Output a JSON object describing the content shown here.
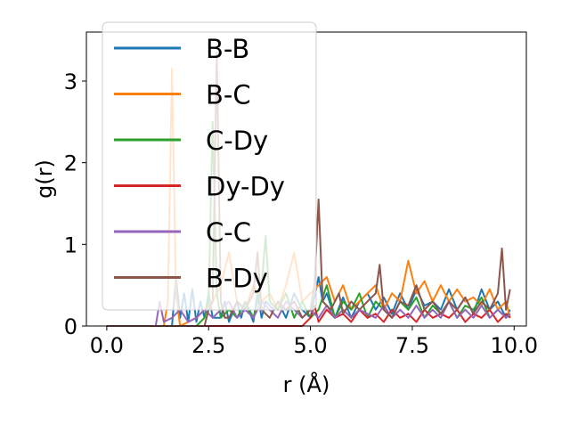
{
  "chart_data": {
    "type": "line",
    "xlabel": "r (Å)",
    "ylabel": "g(r)",
    "xlim": [
      -0.5,
      10.3
    ],
    "ylim": [
      0,
      3.6
    ],
    "xticks": [
      0.0,
      2.5,
      5.0,
      7.5,
      10.0
    ],
    "xtick_labels": [
      "0.0",
      "2.5",
      "5.0",
      "7.5",
      "10.0"
    ],
    "yticks": [
      0,
      1,
      2,
      3
    ],
    "ytick_labels": [
      "0",
      "1",
      "2",
      "3"
    ],
    "grid": false,
    "legend_position": "upper-left",
    "series": [
      {
        "name": "B-B",
        "color": "#1f77b4",
        "x": [
          0,
          1.6,
          1.7,
          1.8,
          1.9,
          2.0,
          2.1,
          2.2,
          2.3,
          2.4,
          2.5,
          2.6,
          2.8,
          2.9,
          3.0,
          3.2,
          3.3,
          3.4,
          3.6,
          3.7,
          3.8,
          3.9,
          4.1,
          4.2,
          4.4,
          4.6,
          4.8,
          5.0,
          5.2,
          5.3,
          5.4,
          5.6,
          5.8,
          6.0,
          6.2,
          6.4,
          6.6,
          6.8,
          7.0,
          7.2,
          7.4,
          7.6,
          7.8,
          8.0,
          8.2,
          8.4,
          8.6,
          8.8,
          9.0,
          9.2,
          9.4,
          9.6,
          9.8,
          9.9
        ],
        "y": [
          0,
          0,
          0.6,
          0.1,
          0.4,
          0.05,
          0.45,
          0.05,
          0.3,
          0.1,
          0.4,
          0.1,
          0.1,
          0.3,
          0.05,
          0.3,
          0.1,
          0.3,
          0.05,
          0.4,
          0.1,
          0.3,
          0.2,
          0.3,
          0.1,
          0.4,
          0.2,
          0.1,
          0.6,
          0.3,
          0.4,
          0.1,
          0.35,
          0.1,
          0.3,
          0.4,
          0.2,
          0.35,
          0.15,
          0.4,
          0.2,
          0.45,
          0.25,
          0.3,
          0.2,
          0.45,
          0.2,
          0.35,
          0.15,
          0.45,
          0.2,
          0.3,
          0.1,
          0.2
        ]
      },
      {
        "name": "B-C",
        "color": "#ff7f0e",
        "x": [
          0,
          1.4,
          1.5,
          1.6,
          1.7,
          1.8,
          2.0,
          2.2,
          2.4,
          2.6,
          2.8,
          3.0,
          3.2,
          3.4,
          3.6,
          3.8,
          4.0,
          4.2,
          4.4,
          4.6,
          4.8,
          5.0,
          5.2,
          5.4,
          5.6,
          5.8,
          6.0,
          6.2,
          6.4,
          6.6,
          6.8,
          7.0,
          7.2,
          7.4,
          7.6,
          7.8,
          8.0,
          8.2,
          8.4,
          8.6,
          8.8,
          9.0,
          9.2,
          9.4,
          9.6,
          9.8,
          9.9
        ],
        "y": [
          0,
          0,
          0.3,
          3.15,
          0.4,
          0.0,
          0.05,
          0.1,
          0.2,
          0.3,
          0.5,
          0.9,
          0.3,
          0.2,
          0.5,
          0.3,
          0.4,
          0.2,
          0.5,
          0.9,
          0.3,
          0.4,
          0.5,
          0.6,
          0.3,
          0.5,
          0.2,
          0.3,
          0.4,
          0.5,
          0.2,
          0.4,
          0.3,
          0.8,
          0.4,
          0.55,
          0.3,
          0.5,
          0.3,
          0.45,
          0.3,
          0.35,
          0.25,
          0.45,
          0.2,
          0.3,
          0.1
        ]
      },
      {
        "name": "C-Dy",
        "color": "#2ca02c",
        "x": [
          0,
          2.2,
          2.4,
          2.5,
          2.6,
          2.7,
          2.8,
          3.0,
          3.2,
          3.4,
          3.6,
          3.8,
          3.9,
          4.0,
          4.2,
          4.4,
          4.6,
          4.8,
          5.0,
          5.2,
          5.4,
          5.6,
          5.8,
          6.0,
          6.2,
          6.4,
          6.6,
          6.8,
          7.0,
          7.2,
          7.4,
          7.6,
          7.8,
          8.0,
          8.2,
          8.4,
          8.6,
          8.8,
          9.0,
          9.2,
          9.4,
          9.6,
          9.8,
          9.9
        ],
        "y": [
          0,
          0,
          0.1,
          0.3,
          2.5,
          0.4,
          0.1,
          0.2,
          0.1,
          0.3,
          0.1,
          0.5,
          1.1,
          0.3,
          0.2,
          0.4,
          0.1,
          0.3,
          0.1,
          0.2,
          0.5,
          0.1,
          0.3,
          0.2,
          0.4,
          0.1,
          0.3,
          0.2,
          0.1,
          0.3,
          0.2,
          0.35,
          0.1,
          0.25,
          0.15,
          0.3,
          0.1,
          0.25,
          0.2,
          0.35,
          0.1,
          0.2,
          0.1,
          0.15
        ]
      },
      {
        "name": "Dy-Dy",
        "color": "#d62728",
        "x": [
          0,
          4.8,
          5.0,
          5.1,
          5.2,
          5.4,
          5.6,
          5.8,
          6.0,
          6.2,
          6.4,
          6.6,
          6.8,
          7.0,
          7.2,
          7.4,
          7.6,
          7.8,
          8.0,
          8.2,
          8.4,
          8.6,
          8.8,
          9.0,
          9.2,
          9.4,
          9.6,
          9.8,
          9.9
        ],
        "y": [
          0,
          0,
          0.1,
          0.25,
          0.05,
          0.2,
          0.1,
          0.15,
          0.05,
          0.2,
          0.1,
          0.15,
          0.05,
          0.2,
          0.1,
          0.15,
          0.05,
          0.2,
          0.1,
          0.15,
          0.1,
          0.2,
          0.05,
          0.15,
          0.1,
          0.2,
          0.05,
          0.15,
          0.1
        ]
      },
      {
        "name": "C-C",
        "color": "#9467bd",
        "x": [
          0,
          1.2,
          1.3,
          1.4,
          1.6,
          1.8,
          2.0,
          2.2,
          2.4,
          2.6,
          2.8,
          3.0,
          3.2,
          3.4,
          3.6,
          3.8,
          4.0,
          4.2,
          4.4,
          4.6,
          4.8,
          5.0,
          5.2,
          5.4,
          5.6,
          5.8,
          6.0,
          6.2,
          6.4,
          6.6,
          6.8,
          7.0,
          7.2,
          7.4,
          7.6,
          7.8,
          8.0,
          8.2,
          8.4,
          8.6,
          8.8,
          9.0,
          9.2,
          9.4,
          9.6,
          9.8,
          9.9
        ],
        "y": [
          0,
          0,
          0.3,
          0.05,
          0.1,
          0.2,
          0.05,
          0.1,
          0.2,
          0.1,
          0.2,
          0.3,
          0.1,
          0.2,
          0.1,
          0.3,
          0.2,
          0.1,
          0.3,
          0.2,
          0.1,
          0.2,
          0.1,
          0.25,
          0.1,
          0.2,
          0.1,
          0.2,
          0.15,
          0.1,
          0.25,
          0.1,
          0.2,
          0.1,
          0.25,
          0.1,
          0.2,
          0.1,
          0.3,
          0.1,
          0.2,
          0.1,
          0.25,
          0.1,
          0.2,
          0.1,
          0.15
        ]
      },
      {
        "name": "B-Dy",
        "color": "#8c564b",
        "x": [
          0,
          2.4,
          2.5,
          2.6,
          2.7,
          2.8,
          2.9,
          3.0,
          3.2,
          3.4,
          3.6,
          3.7,
          3.8,
          4.0,
          4.2,
          4.4,
          4.6,
          4.8,
          5.0,
          5.1,
          5.2,
          5.3,
          5.5,
          5.7,
          5.8,
          6.0,
          6.2,
          6.4,
          6.6,
          6.7,
          6.8,
          7.0,
          7.2,
          7.4,
          7.6,
          7.8,
          8.0,
          8.2,
          8.4,
          8.6,
          8.8,
          9.0,
          9.2,
          9.4,
          9.6,
          9.7,
          9.8,
          9.9
        ],
        "y": [
          0,
          0,
          0.2,
          0.3,
          3.35,
          0.3,
          0.1,
          0.1,
          0.3,
          0.2,
          0.4,
          0.9,
          0.2,
          0.1,
          0.3,
          0.2,
          0.3,
          0.1,
          0.2,
          0.5,
          1.55,
          0.3,
          0.2,
          0.4,
          0.15,
          0.3,
          0.2,
          0.3,
          0.4,
          0.75,
          0.2,
          0.1,
          0.3,
          0.25,
          0.5,
          0.2,
          0.3,
          0.15,
          0.3,
          0.2,
          0.35,
          0.15,
          0.3,
          0.2,
          0.4,
          0.95,
          0.2,
          0.45
        ]
      }
    ]
  }
}
